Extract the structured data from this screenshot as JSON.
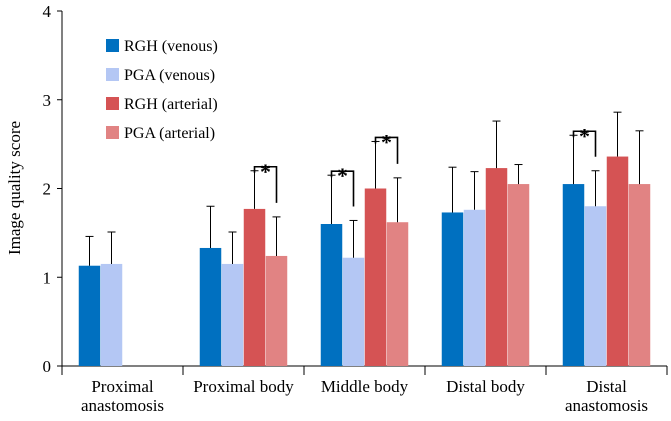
{
  "chart_data": {
    "type": "bar",
    "ylabel": "Image quality score",
    "ylim": [
      0,
      4
    ],
    "yticks": [
      0,
      1,
      2,
      3,
      4
    ],
    "categories": [
      [
        "Proximal",
        "anastomosis"
      ],
      [
        "Proximal body"
      ],
      [
        "Middle body"
      ],
      [
        "Distal body"
      ],
      [
        "Distal",
        "anastomosis"
      ]
    ],
    "series": [
      {
        "name": "RGH (venous)",
        "color": "#0070C0",
        "values": [
          1.13,
          1.33,
          1.6,
          1.73,
          2.05
        ],
        "errors": [
          0.33,
          0.47,
          0.55,
          0.51,
          0.55
        ]
      },
      {
        "name": "PGA (venous)",
        "color": "#B4C7F4",
        "values": [
          1.15,
          1.15,
          1.22,
          1.76,
          1.8
        ],
        "errors": [
          0.36,
          0.36,
          0.42,
          0.43,
          0.4
        ]
      },
      {
        "name": "RGH (arterial)",
        "color": "#D55354",
        "values": [
          null,
          1.77,
          2.0,
          2.23,
          2.36
        ],
        "errors": [
          null,
          0.43,
          0.53,
          0.53,
          0.5
        ]
      },
      {
        "name": "PGA (arterial)",
        "color": "#E18383",
        "values": [
          null,
          1.24,
          1.62,
          2.05,
          2.05
        ],
        "errors": [
          null,
          0.44,
          0.5,
          0.22,
          0.6
        ]
      }
    ],
    "significance": [
      {
        "category": 1,
        "pair": [
          2,
          3
        ],
        "label": "*"
      },
      {
        "category": 2,
        "pair": [
          0,
          1
        ],
        "label": "*"
      },
      {
        "category": 2,
        "pair": [
          2,
          3
        ],
        "label": "*"
      },
      {
        "category": 4,
        "pair": [
          0,
          1
        ],
        "label": "*"
      }
    ],
    "legend": "top-left",
    "grid": false
  }
}
